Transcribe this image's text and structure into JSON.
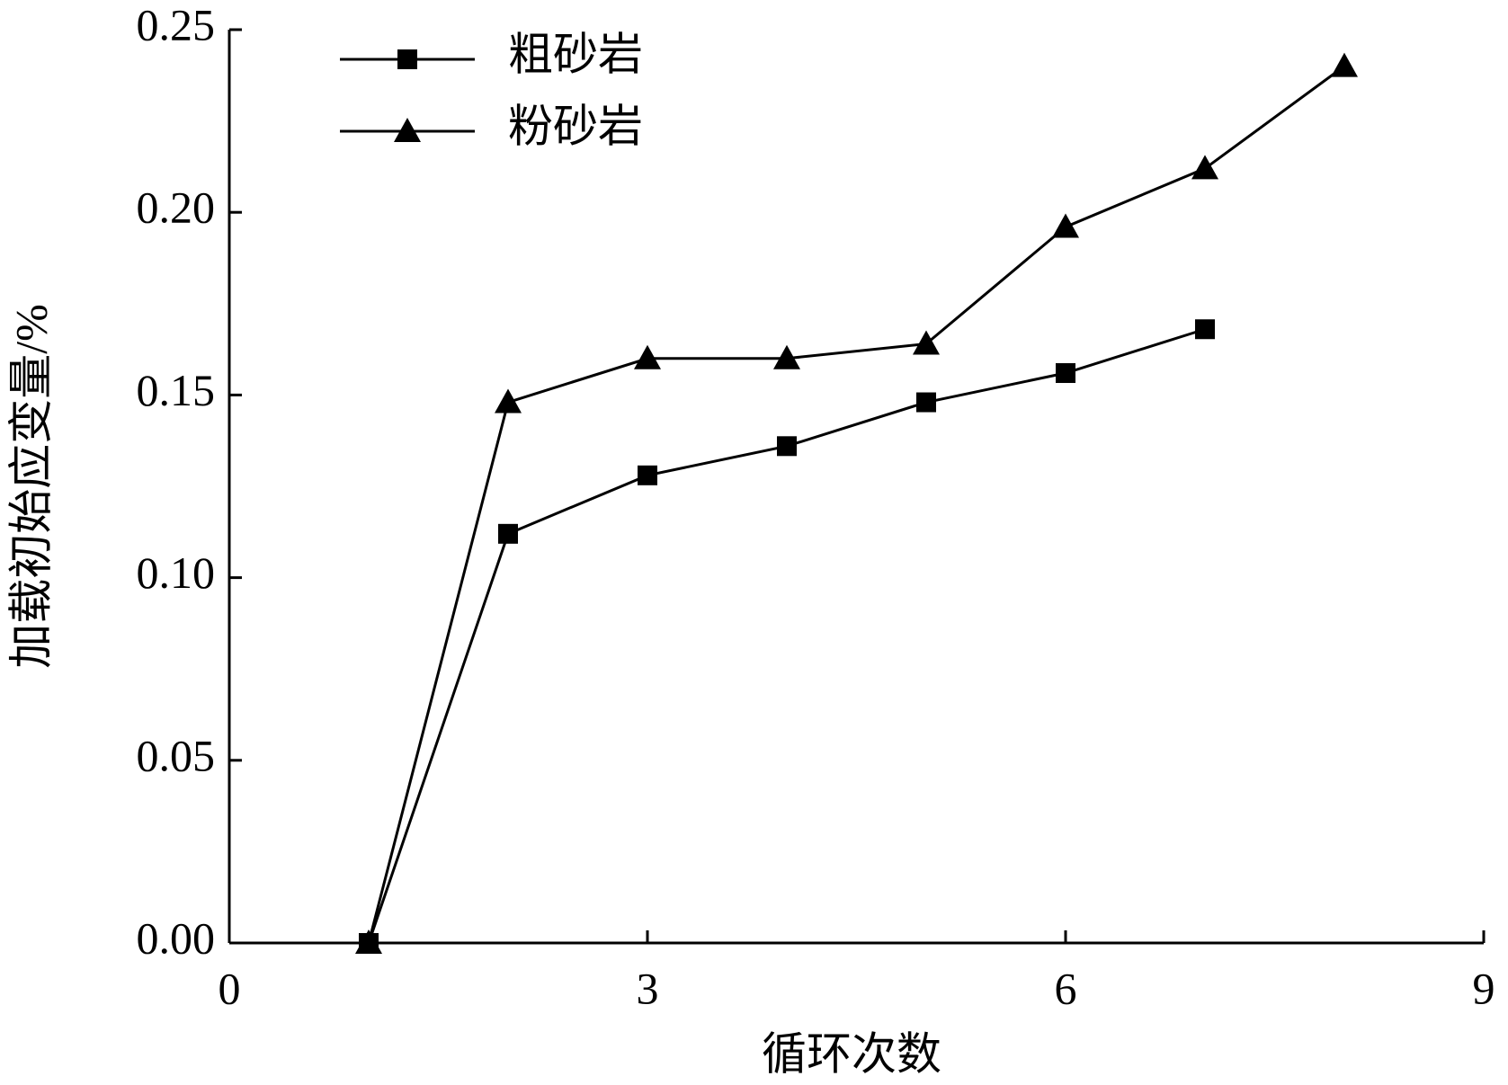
{
  "chart_data": {
    "type": "line",
    "xlabel": "循环次数",
    "ylabel": "加载初始应变量/%",
    "series": [
      {
        "name": "粗砂岩",
        "color": "#000000",
        "marker": "square",
        "x": [
          1,
          2,
          3,
          4,
          5,
          6,
          7
        ],
        "values": [
          0,
          0.112,
          0.128,
          0.136,
          0.148,
          0.156,
          0.168
        ]
      },
      {
        "name": "粉砂岩",
        "color": "#000000",
        "marker": "triangle",
        "x": [
          1,
          2,
          3,
          4,
          5,
          6,
          7,
          8
        ],
        "values": [
          0,
          0.148,
          0.16,
          0.16,
          0.164,
          0.196,
          0.212,
          0.24
        ]
      }
    ],
    "xlim": [
      0,
      9
    ],
    "xticks": [
      0,
      3,
      6,
      9
    ],
    "ylim": [
      0,
      0.25
    ],
    "yticks": [
      {
        "value": 0,
        "label": "0.00"
      },
      {
        "value": 0.05,
        "label": "0.05"
      },
      {
        "value": 0.1,
        "label": "0.10"
      },
      {
        "value": 0.15,
        "label": "0.15"
      },
      {
        "value": 0.2,
        "label": "0.20"
      },
      {
        "value": 0.25,
        "label": "0.25"
      }
    ],
    "grid": false,
    "legend": "upper left"
  }
}
